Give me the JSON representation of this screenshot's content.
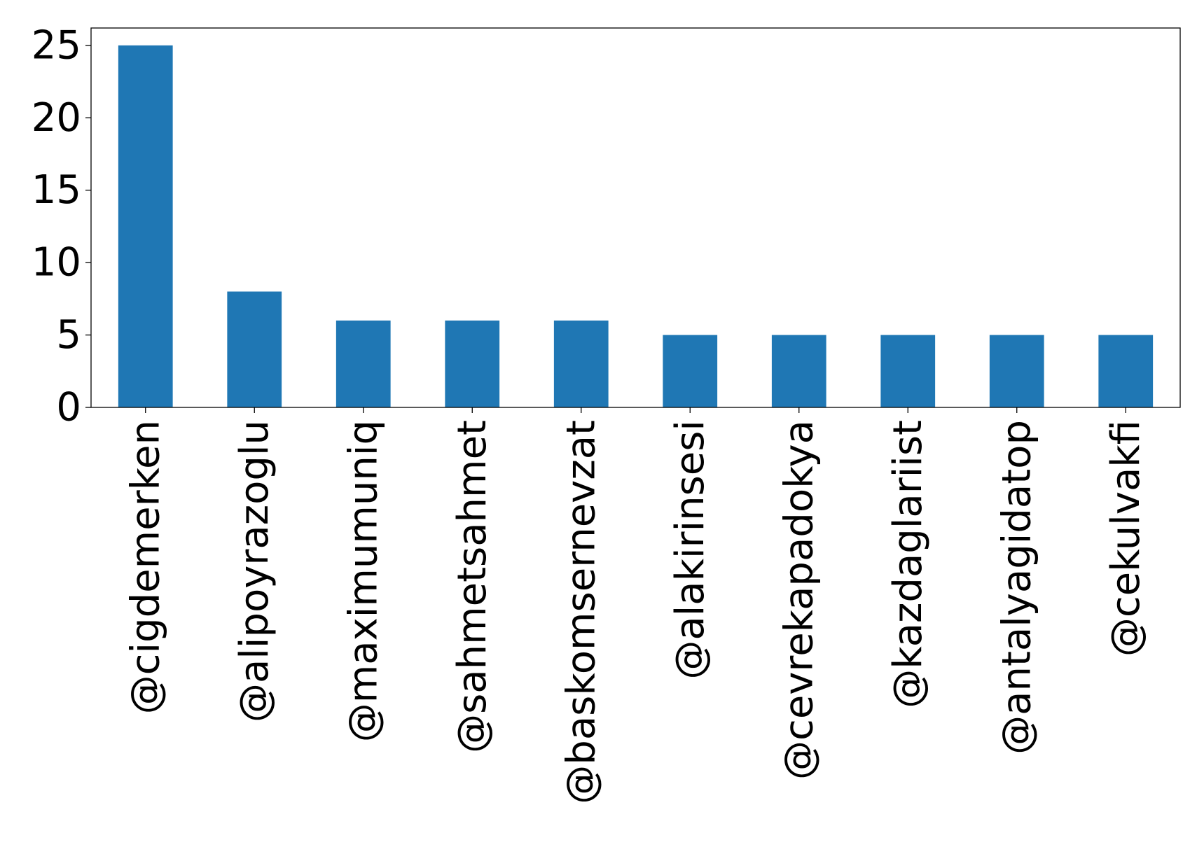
{
  "chart_data": {
    "type": "bar",
    "categories": [
      "@cigdemerken",
      "@alipoyrazoglu",
      "@maximumuniq",
      "@sahmetsahmet",
      "@baskomsernevzat",
      "@alakirinsesi",
      "@cevrekapadokya",
      "@kazdaglariist",
      "@antalyagidatop",
      "@cekulvakfi"
    ],
    "values": [
      25,
      8,
      6,
      6,
      6,
      5,
      5,
      5,
      5,
      5
    ],
    "title": "",
    "xlabel": "",
    "ylabel": "",
    "ylim": [
      0,
      26.2
    ],
    "yticks": [
      0,
      5,
      10,
      15,
      20,
      25
    ],
    "grid": false,
    "bar_color": "#1f77b4"
  }
}
